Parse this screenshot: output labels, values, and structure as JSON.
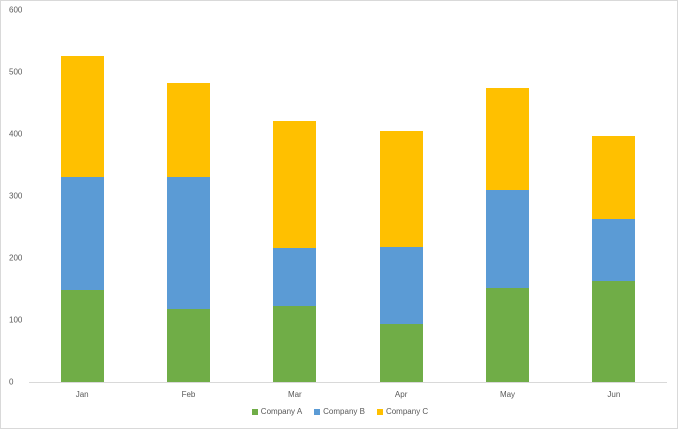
{
  "chart_data": {
    "type": "bar",
    "stacked": true,
    "title": "",
    "xlabel": "",
    "ylabel": "",
    "categories": [
      "Jan",
      "Feb",
      "Mar",
      "Apr",
      "May",
      "Jun"
    ],
    "series": [
      {
        "name": "Company A",
        "color": "#70ad47",
        "values": [
          148,
          118,
          123,
          94,
          152,
          163
        ]
      },
      {
        "name": "Company B",
        "color": "#5b9bd5",
        "values": [
          183,
          213,
          93,
          124,
          158,
          100
        ]
      },
      {
        "name": "Company C",
        "color": "#ffc000",
        "values": [
          195,
          151,
          205,
          187,
          164,
          134
        ]
      }
    ],
    "ylim": [
      0,
      600
    ],
    "yticks": [
      0,
      100,
      200,
      300,
      400,
      500,
      600
    ],
    "grid": false,
    "legend_position": "bottom"
  }
}
